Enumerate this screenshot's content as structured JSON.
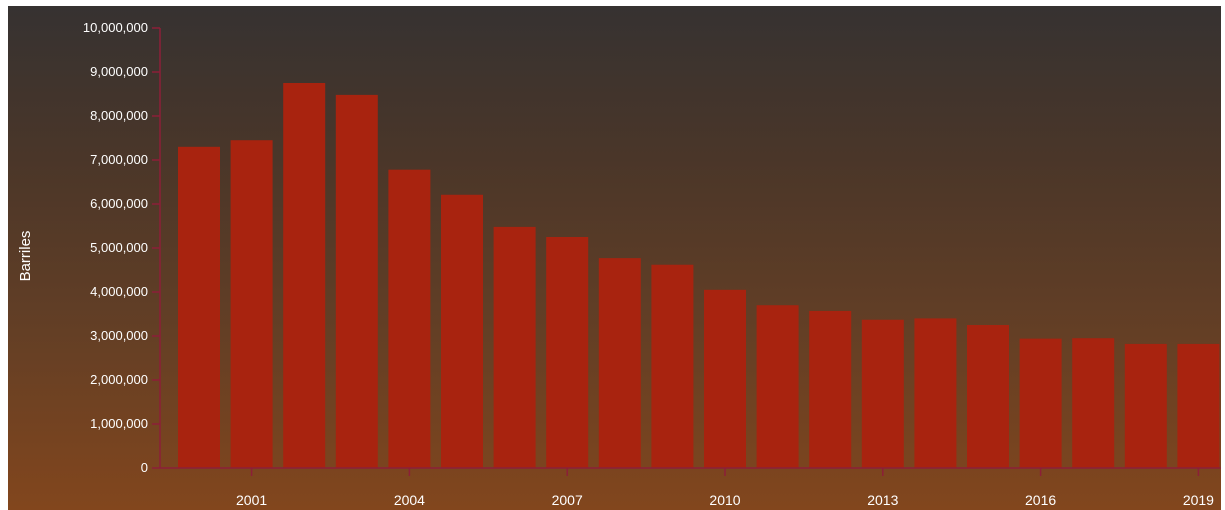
{
  "chart_data": {
    "type": "bar",
    "title": "",
    "xlabel": "",
    "ylabel": "Barriles",
    "categories": [
      "2000",
      "2001",
      "2002",
      "2003",
      "2004",
      "2005",
      "2006",
      "2007",
      "2008",
      "2009",
      "2010",
      "2011",
      "2012",
      "2013",
      "2014",
      "2015",
      "2016",
      "2017",
      "2018",
      "2019"
    ],
    "x_tick_labels": [
      "2001",
      "2004",
      "2007",
      "2010",
      "2013",
      "2016",
      "2019"
    ],
    "values": [
      7300000,
      7450000,
      8750000,
      8480000,
      6780000,
      6210000,
      5480000,
      5250000,
      4770000,
      4620000,
      4050000,
      3700000,
      3570000,
      3370000,
      3400000,
      3250000,
      2940000,
      2950000,
      2820000,
      2820000
    ],
    "ylim": [
      0,
      10000000
    ],
    "y_ticks": [
      0,
      1000000,
      2000000,
      3000000,
      4000000,
      5000000,
      6000000,
      7000000,
      8000000,
      9000000,
      10000000
    ],
    "y_tick_labels": [
      "0",
      "1,000,000",
      "2,000,000",
      "3,000,000",
      "4,000,000",
      "5,000,000",
      "6,000,000",
      "7,000,000",
      "8,000,000",
      "9,000,000",
      "10,000,000"
    ],
    "grid": false,
    "legend": "none",
    "colors": {
      "bar": "#a8230f",
      "axis": "#8c1f38",
      "text": "#ffffff",
      "background_top": "#363231",
      "background_bottom": "#82461d"
    }
  }
}
